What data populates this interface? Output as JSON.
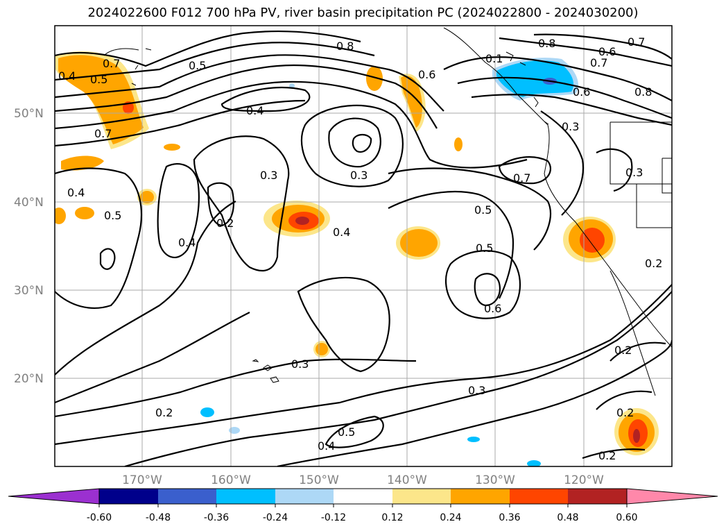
{
  "title": "2024022600 F012 700 hPa PV, river basin precipitation PC (2024022800 - 2024030200)",
  "map": {
    "lat_labels": [
      "50°N",
      "40°N",
      "30°N",
      "20°N"
    ],
    "lon_labels": [
      "170°W",
      "160°W",
      "150°W",
      "140°W",
      "130°W",
      "120°W"
    ],
    "contour_labels": [
      "0.8",
      "0.6",
      "0.8",
      "0.6",
      "0.7",
      "0.6",
      "0.4",
      "0.5",
      "0.7",
      "0.7",
      "0.3",
      "0.4",
      "0.3",
      "0.3",
      "0.7",
      "0.4",
      "0.5",
      "0.2",
      "0.3",
      "0.4",
      "0.4",
      "0.5",
      "0.5",
      "0.6",
      "0.2",
      "0.2",
      "0.3",
      "0.3",
      "0.2",
      "0.5",
      "0.4",
      "0.2",
      "0.2",
      "0.1",
      "0.7",
      "0.5",
      "0.8"
    ]
  },
  "colorbar": {
    "labels": [
      "-0.60",
      "-0.48",
      "-0.36",
      "-0.24",
      "-0.12",
      "0.12",
      "0.24",
      "0.36",
      "0.48",
      "0.60"
    ],
    "colors": [
      "#9b30d0",
      "#00008b",
      "#3a5fcd",
      "#00bfff",
      "#add8f6",
      "#ffffff",
      "#fce68a",
      "#ffa500",
      "#ff4500",
      "#b22222",
      "#ff88aa",
      "#ff88aa"
    ]
  }
}
